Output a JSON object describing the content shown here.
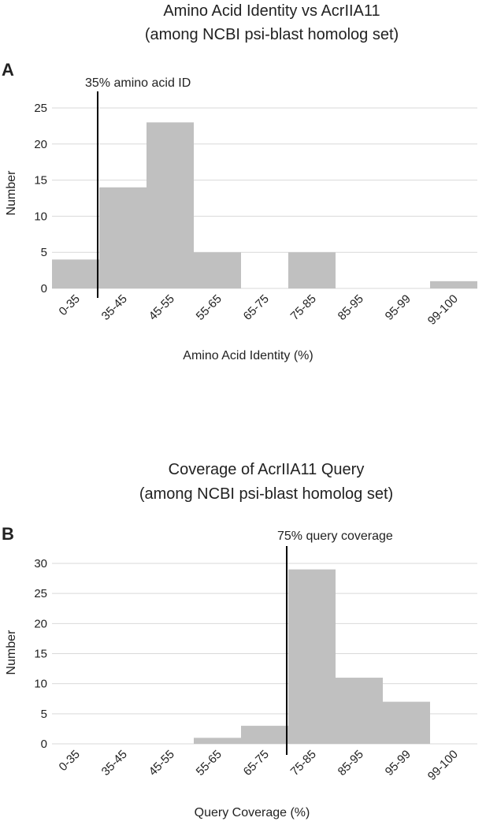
{
  "chart_data": [
    {
      "type": "bar",
      "panel_label": "A",
      "title": "Amino Acid Identity vs AcrIIA11",
      "subtitle": "(among NCBI psi-blast homolog set)",
      "xlabel": "Amino Acid Identity (%)",
      "ylabel": "Number",
      "categories": [
        "0-35",
        "35-45",
        "45-55",
        "55-65",
        "65-75",
        "75-85",
        "85-95",
        "95-99",
        "99-100"
      ],
      "values": [
        4,
        14,
        23,
        5,
        0,
        5,
        0,
        0,
        1
      ],
      "ylim": [
        0,
        25
      ],
      "yticks": [
        0,
        5,
        10,
        15,
        20,
        25
      ],
      "grid": true,
      "bar_color": "#c0c0c0",
      "threshold": {
        "label": "35% amino acid ID",
        "x_value": 35
      }
    },
    {
      "type": "bar",
      "panel_label": "B",
      "title": "Coverage of AcrIIA11 Query",
      "subtitle": "(among NCBI psi-blast homolog set)",
      "xlabel": "Query Coverage (%)",
      "ylabel": "Number",
      "categories": [
        "0-35",
        "35-45",
        "45-55",
        "55-65",
        "65-75",
        "75-85",
        "85-95",
        "95-99",
        "99-100"
      ],
      "values": [
        0,
        0,
        0,
        1,
        3,
        29,
        11,
        7,
        0
      ],
      "ylim": [
        0,
        30
      ],
      "yticks": [
        0,
        5,
        10,
        15,
        20,
        25,
        30
      ],
      "grid": true,
      "bar_color": "#c0c0c0",
      "threshold": {
        "label": "75% query coverage",
        "x_value": 75
      }
    }
  ]
}
